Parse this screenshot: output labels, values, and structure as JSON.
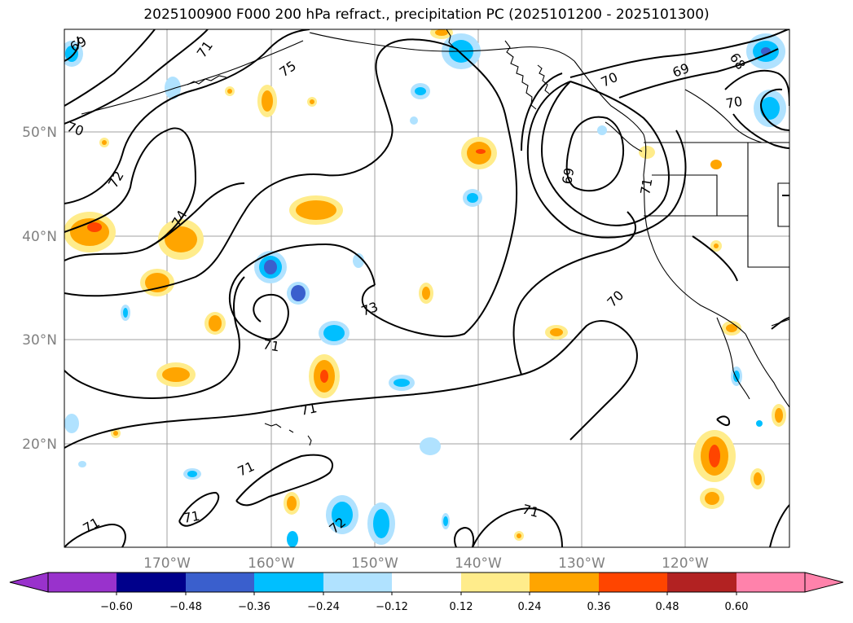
{
  "title": "2025100900 F000 200 hPa refract., precipitation PC (2025101200 - 2025101300)",
  "map": {
    "lon_labels": [
      "170°W",
      "160°W",
      "150°W",
      "140°W",
      "130°W",
      "120°W"
    ],
    "lat_labels": [
      "50°N",
      "40°N",
      "30°N",
      "20°N"
    ],
    "contour_labels": [
      "69",
      "71",
      "75",
      "70",
      "72",
      "74",
      "71",
      "73",
      "71",
      "71",
      "71",
      "71",
      "71",
      "72",
      "70",
      "69",
      "68",
      "69",
      "71",
      "70"
    ],
    "contour_color": "#000000",
    "grid_color": "#a0a0a0"
  },
  "colorbar": {
    "ticks": [
      "−0.60",
      "−0.48",
      "−0.36",
      "−0.24",
      "−0.12",
      "0.12",
      "0.24",
      "0.36",
      "0.48",
      "0.60"
    ],
    "colors": [
      "#9932cc",
      "#00008b",
      "#3a5fcd",
      "#00bfff",
      "#b0e2ff",
      "#ffffff",
      "#ffec8b",
      "#ffa500",
      "#ff4500",
      "#b22222",
      "#ff82ab"
    ]
  }
}
